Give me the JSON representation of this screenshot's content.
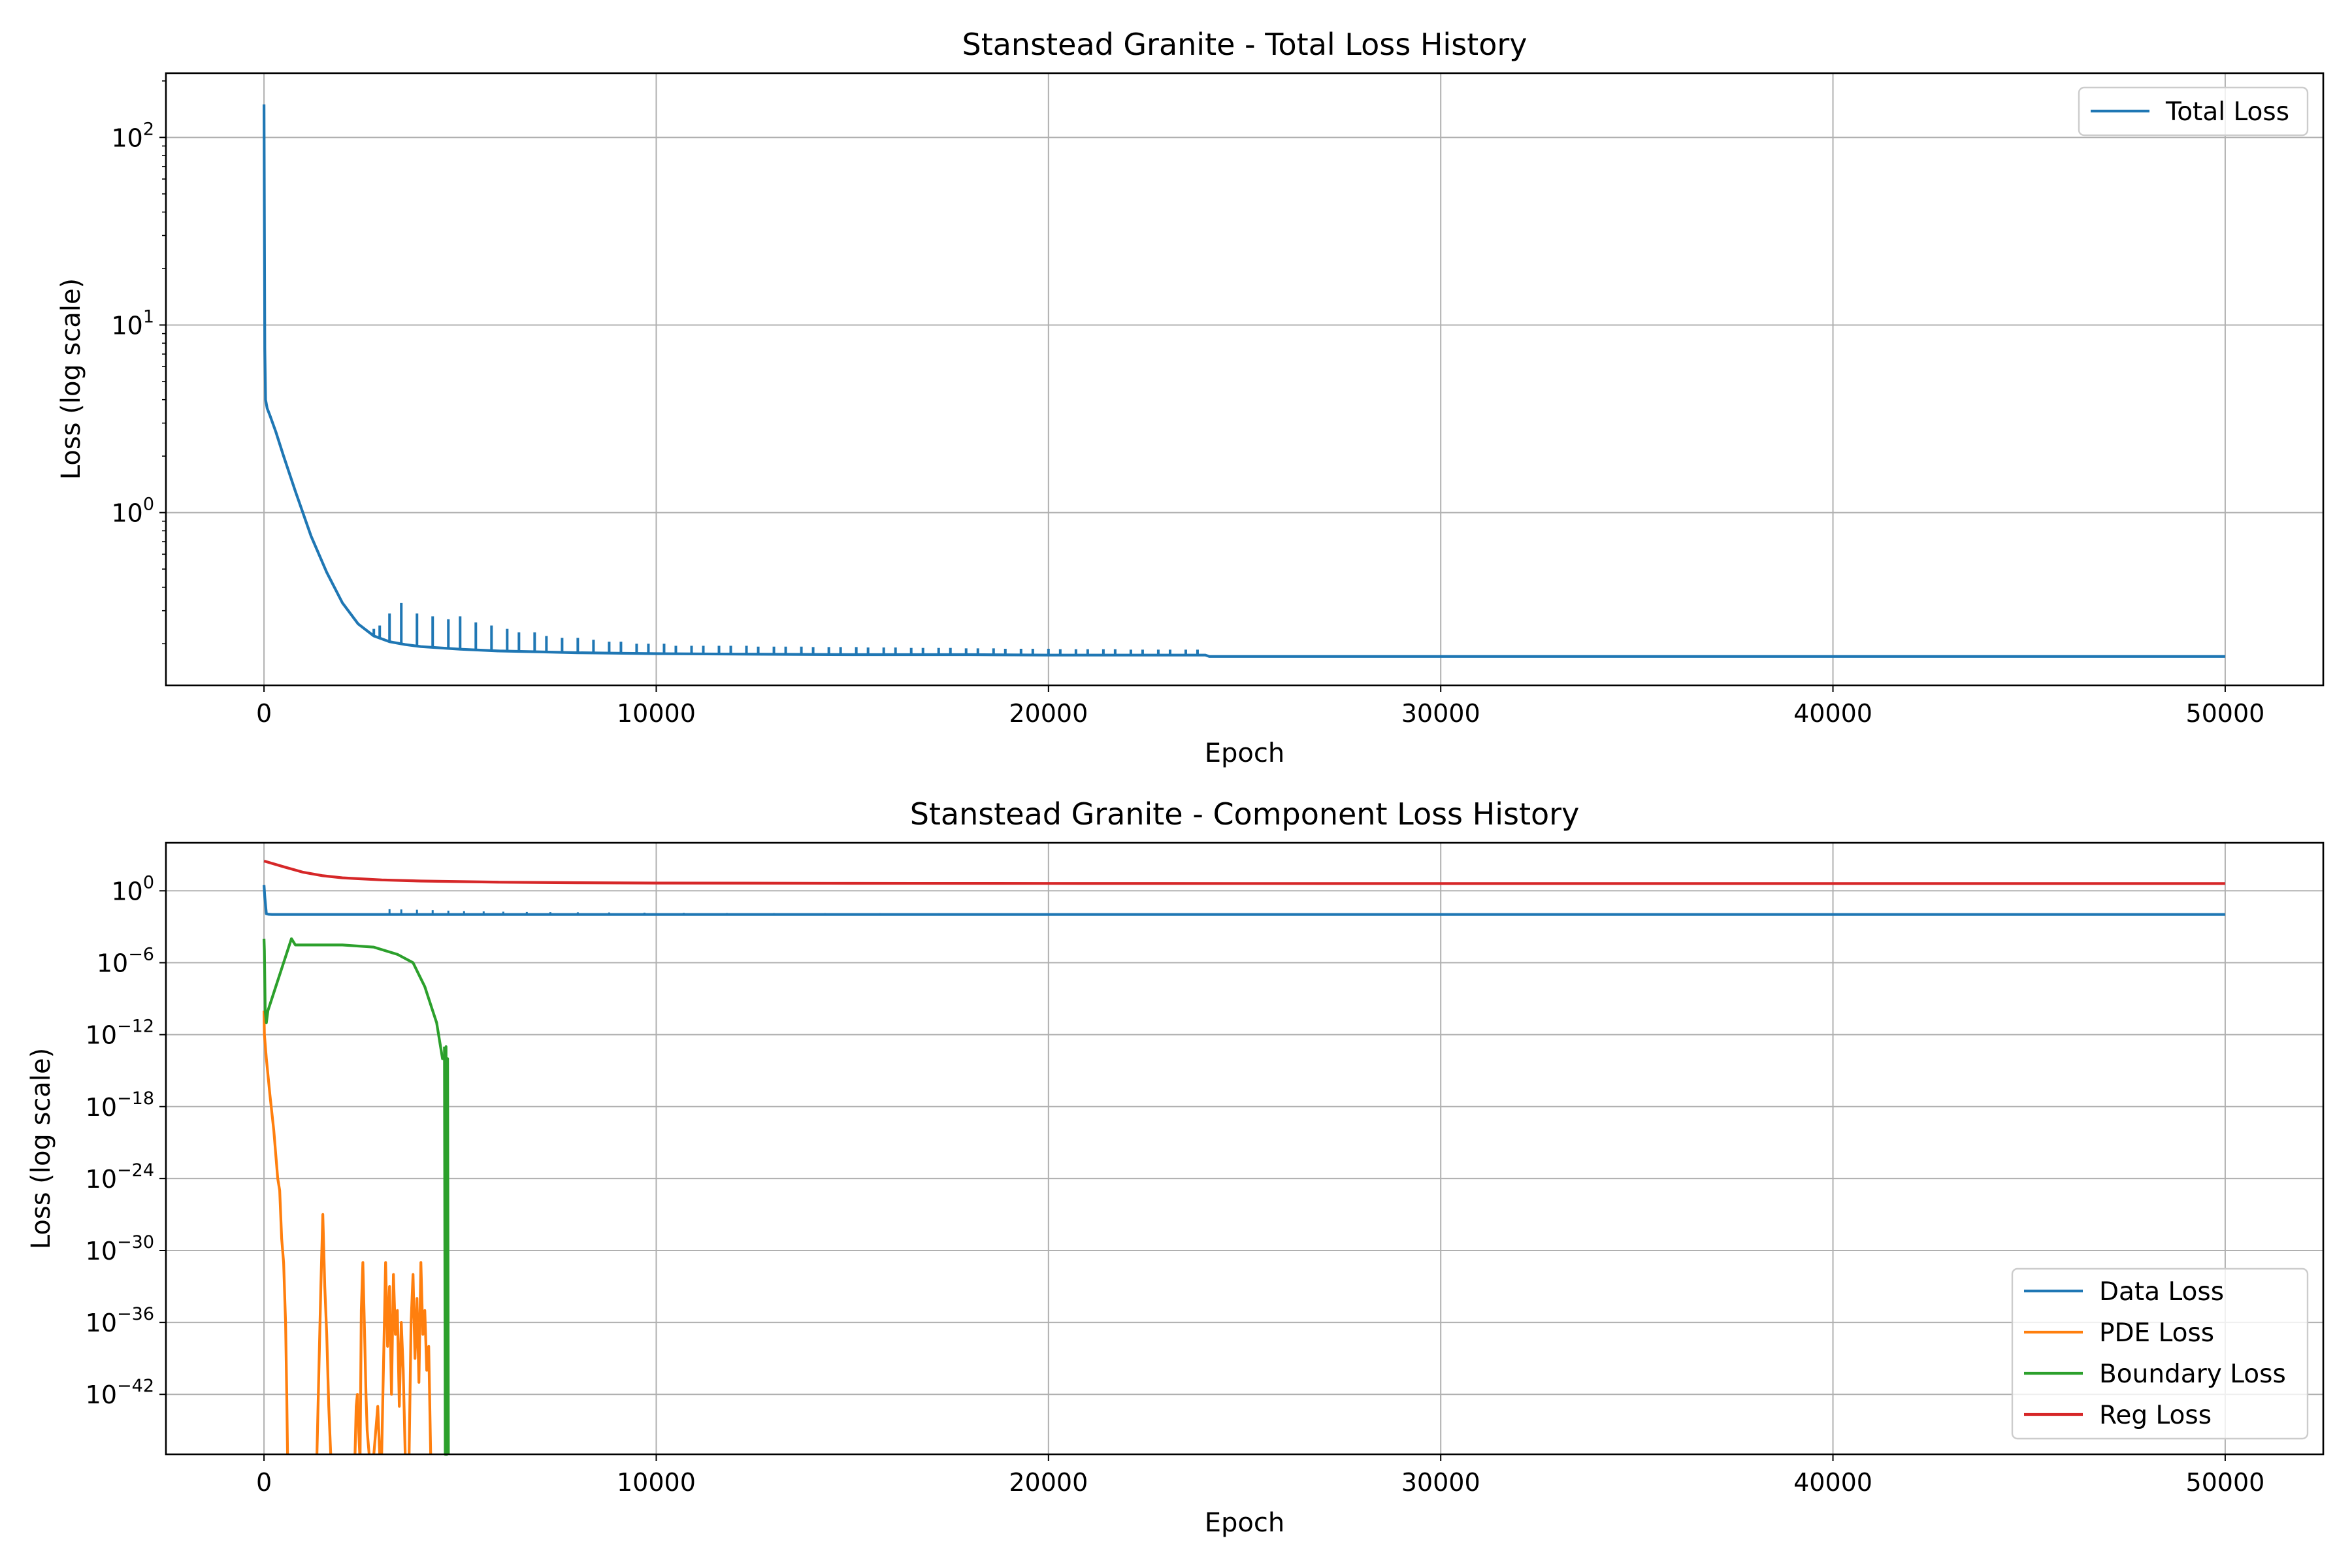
{
  "chart_data": [
    {
      "type": "line",
      "title": "Stanstead Granite - Total Loss History",
      "xlabel": "Epoch",
      "ylabel": "Loss (log scale)",
      "xlim": [
        -2500,
        52500
      ],
      "ylim": [
        0.12,
        220
      ],
      "yscale": "log",
      "grid": true,
      "legend": "upper right",
      "x_ticks": [
        {
          "value": 0,
          "label": "0"
        },
        {
          "value": 10000,
          "label": "10000"
        },
        {
          "value": 20000,
          "label": "20000"
        },
        {
          "value": 30000,
          "label": "30000"
        },
        {
          "value": 40000,
          "label": "40000"
        },
        {
          "value": 50000,
          "label": "50000"
        }
      ],
      "y_ticks": [
        {
          "value": 1,
          "base": "10",
          "exp": "0"
        },
        {
          "value": 10,
          "base": "10",
          "exp": "1"
        },
        {
          "value": 100,
          "base": "10",
          "exp": "2"
        }
      ],
      "series": [
        {
          "name": "Total Loss",
          "color": "#1f77b4",
          "x": [
            0,
            20,
            40,
            80,
            150,
            300,
            500,
            800,
            1200,
            1600,
            2000,
            2400,
            2800,
            3200,
            3600,
            4000,
            4500,
            5000,
            6000,
            7000,
            8000,
            9000,
            10000,
            12000,
            15000,
            18000,
            20000,
            24000,
            24100,
            30000,
            40000,
            50000
          ],
          "y": [
            150,
            7.5,
            4.0,
            3.6,
            3.3,
            2.7,
            2.0,
            1.3,
            0.75,
            0.48,
            0.33,
            0.255,
            0.22,
            0.205,
            0.198,
            0.193,
            0.19,
            0.187,
            0.183,
            0.181,
            0.179,
            0.178,
            0.177,
            0.176,
            0.175,
            0.175,
            0.174,
            0.174,
            0.171,
            0.171,
            0.171,
            0.171
          ]
        }
      ],
      "spikes": {
        "series": "Total Loss",
        "x": [
          2800,
          2950,
          3200,
          3500,
          3900,
          4300,
          4700,
          5000,
          5400,
          5800,
          6200,
          6500,
          6900,
          7200,
          7600,
          8000,
          8400,
          8800,
          9100,
          9500,
          9800,
          10200,
          10500,
          10900,
          11200,
          11600,
          11900,
          12300,
          12600,
          13000,
          13300,
          13700,
          14000,
          14400,
          14700,
          15100,
          15400,
          15800,
          16100,
          16500,
          16800,
          17200,
          17500,
          17900,
          18200,
          18600,
          18900,
          19300,
          19600,
          20000,
          20300,
          20700,
          21000,
          21400,
          21700,
          22100,
          22400,
          22800,
          23100,
          23500,
          23800
        ],
        "y": [
          0.24,
          0.25,
          0.29,
          0.33,
          0.29,
          0.28,
          0.27,
          0.28,
          0.26,
          0.25,
          0.24,
          0.23,
          0.23,
          0.22,
          0.215,
          0.215,
          0.21,
          0.205,
          0.205,
          0.2,
          0.2,
          0.2,
          0.195,
          0.195,
          0.195,
          0.195,
          0.195,
          0.195,
          0.193,
          0.193,
          0.193,
          0.193,
          0.192,
          0.192,
          0.192,
          0.192,
          0.191,
          0.191,
          0.191,
          0.19,
          0.19,
          0.19,
          0.19,
          0.189,
          0.189,
          0.189,
          0.188,
          0.188,
          0.188,
          0.188,
          0.187,
          0.187,
          0.187,
          0.187,
          0.187,
          0.186,
          0.186,
          0.186,
          0.186,
          0.186,
          0.186
        ]
      }
    },
    {
      "type": "line",
      "title": "Stanstead Granite - Component Loss History",
      "xlabel": "Epoch",
      "ylabel": "Loss (log scale)",
      "xlim": [
        -2500,
        52500
      ],
      "ylim": [
        1e-47,
        10000.0
      ],
      "yscale": "log",
      "grid": true,
      "legend": "lower right",
      "x_ticks": [
        {
          "value": 0,
          "label": "0"
        },
        {
          "value": 10000,
          "label": "10000"
        },
        {
          "value": 20000,
          "label": "20000"
        },
        {
          "value": 30000,
          "label": "30000"
        },
        {
          "value": 40000,
          "label": "40000"
        },
        {
          "value": 50000,
          "label": "50000"
        }
      ],
      "y_ticks": [
        {
          "value": 1.0,
          "base": "10",
          "exp": "0"
        },
        {
          "value": 1e-06,
          "base": "10",
          "exp": "−6"
        },
        {
          "value": 1e-12,
          "base": "10",
          "exp": "−12"
        },
        {
          "value": 1e-18,
          "base": "10",
          "exp": "−18"
        },
        {
          "value": 1e-24,
          "base": "10",
          "exp": "−24"
        },
        {
          "value": 1e-30,
          "base": "10",
          "exp": "−30"
        },
        {
          "value": 1e-36,
          "base": "10",
          "exp": "−36"
        },
        {
          "value": 1e-42,
          "base": "10",
          "exp": "−42"
        }
      ],
      "series": [
        {
          "name": "Data Loss",
          "color": "#1f77b4",
          "x": [
            0,
            20,
            60,
            120,
            200,
            500,
            1000,
            3000,
            10000,
            24000,
            30000,
            40000,
            50000
          ],
          "y": [
            3.0,
            0.3,
            0.012,
            0.011,
            0.0105,
            0.0105,
            0.0105,
            0.0105,
            0.0105,
            0.0105,
            0.0105,
            0.0105,
            0.0105
          ]
        },
        {
          "name": "PDE Loss",
          "color": "#ff7f0e",
          "x": [
            0,
            10,
            60,
            150,
            250,
            350,
            400,
            450,
            500,
            520,
            550,
            580,
            600
          ],
          "y": [
            1e-10,
            1e-12,
            1e-14,
            1e-17,
            1e-20,
            1e-24,
            1e-25,
            1e-29,
            1e-31,
            1e-33,
            1e-36,
            1e-42,
            1e-49
          ]
        },
        {
          "name": "Boundary Loss",
          "color": "#2ca02c",
          "x": [
            0,
            10,
            30,
            60,
            100,
            200,
            300,
            400,
            500,
            600,
            700,
            800,
            1200,
            2000,
            2800,
            3400,
            3800,
            4100,
            4300,
            4400,
            4500,
            4550,
            4600,
            4650
          ],
          "y": [
            0.0001,
            1e-05,
            1e-10,
            1e-11,
            1e-10,
            1e-09,
            1e-08,
            1e-07,
            1e-06,
            1e-05,
            0.0001,
            3e-05,
            3e-05,
            3e-05,
            2e-05,
            5e-06,
            1e-06,
            1e-08,
            1e-10,
            1e-11,
            1e-13,
            1e-14,
            1e-14,
            1e-14
          ]
        },
        {
          "name": "Reg Loss",
          "color": "#d62728",
          "x": [
            0,
            500,
            1000,
            1500,
            2000,
            3000,
            4000,
            6000,
            8000,
            10000,
            15000,
            20000,
            30000,
            40000,
            50000
          ],
          "y": [
            300,
            100,
            35,
            18,
            12,
            8,
            6.5,
            5.2,
            4.7,
            4.4,
            4.2,
            4.1,
            4.0,
            4.0,
            4.0
          ]
        }
      ],
      "pde_bursts": [
        {
          "x": [
            1350,
            1400,
            1450,
            1500,
            1550,
            1600,
            1650,
            1700
          ],
          "y": [
            1e-49,
            1e-40,
            1e-33,
            1e-27,
            1e-33,
            1e-37,
            1e-43,
            1e-49
          ]
        },
        {
          "x": [
            2320,
            2350,
            2380,
            2400,
            2440
          ],
          "y": [
            1e-49,
            1e-43,
            1e-42,
            1e-44,
            1e-49
          ]
        },
        {
          "x": [
            2450,
            2480,
            2520,
            2550,
            2600,
            2630,
            2680
          ],
          "y": [
            1e-49,
            1e-35,
            1e-31,
            1e-35,
            1e-42,
            1e-45,
            1e-49
          ]
        },
        {
          "x": [
            2800,
            2850,
            2900,
            2950
          ],
          "y": [
            1e-49,
            1e-45,
            1e-43,
            1e-49
          ]
        },
        {
          "x": [
            3000,
            3050,
            3100,
            3150,
            3200,
            3250,
            3300,
            3350,
            3400,
            3450,
            3500,
            3550,
            3600
          ],
          "y": [
            1e-49,
            1e-39,
            1e-31,
            1e-38,
            1e-33,
            1e-42,
            1e-32,
            1e-37,
            1e-35,
            1e-43,
            1e-36,
            1e-40,
            1e-49
          ]
        },
        {
          "x": [
            3700,
            3750,
            3800,
            3850,
            3900,
            3950,
            4000,
            4050,
            4100,
            4150,
            4200,
            4250
          ],
          "y": [
            1e-49,
            1e-36,
            1e-32,
            1e-39,
            1e-34,
            1e-41,
            1e-31,
            1e-37,
            1e-35,
            1e-40,
            1e-38,
            1e-49
          ]
        }
      ],
      "boundary_spikes": {
        "x": [
          4600,
          4620,
          4640,
          4660,
          4680,
          4700
        ],
        "y": [
          1e-13,
          1e-49,
          1e-13,
          1e-49,
          1e-14,
          1e-49
        ]
      },
      "data_spikes": {
        "x": [
          3200,
          3500,
          3900,
          4300,
          4700,
          5100,
          5600,
          6100,
          6700,
          7300,
          8000,
          8800,
          9700,
          10700,
          11800,
          13000,
          14300,
          15700,
          17200,
          18800,
          20500,
          22200,
          23900
        ],
        "y": [
          0.03,
          0.028,
          0.026,
          0.024,
          0.022,
          0.02,
          0.019,
          0.018,
          0.017,
          0.0165,
          0.016,
          0.0155,
          0.015,
          0.0145,
          0.014,
          0.0138,
          0.0136,
          0.0134,
          0.0132,
          0.013,
          0.0128,
          0.0126,
          0.0125
        ]
      }
    }
  ]
}
